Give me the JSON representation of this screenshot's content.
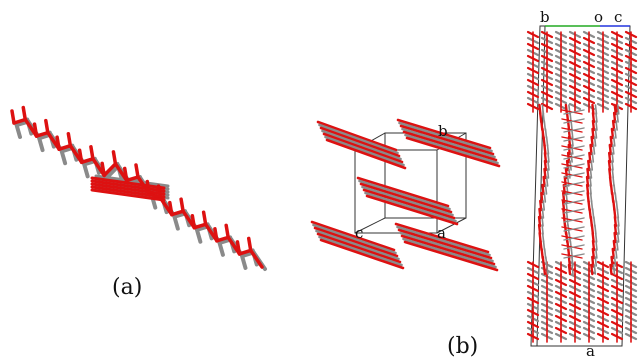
{
  "panels": [
    {
      "label": "(a)"
    },
    {
      "label": "(b)"
    }
  ],
  "axes_b": {
    "b": "b",
    "a": "a",
    "c": "c"
  },
  "axes_c": {
    "b": "b",
    "o": "o",
    "c": "c",
    "a": "a"
  },
  "colors": {
    "red": "#dd1111",
    "gray": "#8a8a8a",
    "frame": "#333333",
    "green": "#22aa22",
    "blue": "#2233dd"
  }
}
